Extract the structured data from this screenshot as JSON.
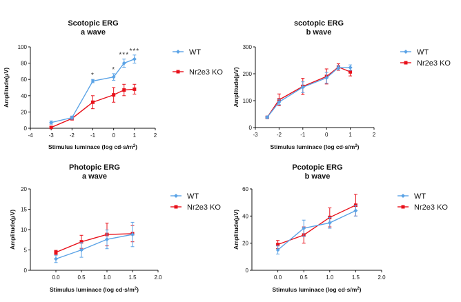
{
  "colors": {
    "wt": "#5ba3e6",
    "ko": "#e8111b",
    "axis": "#111111"
  },
  "chart_data": [
    {
      "type": "line",
      "title": "Scotopic ERG",
      "subtitle": "a wave",
      "xlabel": "Stimulus luminace (log cd·s/m",
      "xlabel_sup": "2",
      "xlabel_close": ")",
      "ylabel": "Amplitude(μV)",
      "xlim": [
        -4,
        2
      ],
      "ylim": [
        0,
        100
      ],
      "xticks": [
        -4,
        -3,
        -2,
        -1,
        0,
        1,
        2
      ],
      "yticks": [
        0,
        20,
        40,
        60,
        80,
        100
      ],
      "legend": "right",
      "series": [
        {
          "name": "WT",
          "x": [
            -3,
            -2,
            -1,
            0,
            0.5,
            1
          ],
          "y": [
            7,
            13,
            58,
            63,
            80,
            85
          ],
          "err": [
            2,
            2,
            2,
            4,
            5,
            5
          ]
        },
        {
          "name": "Nr2e3 KO",
          "x": [
            -3,
            -2,
            -1,
            0,
            0.5,
            1
          ],
          "y": [
            1,
            12,
            32,
            41,
            47,
            48
          ],
          "err": [
            1,
            2,
            8,
            9,
            7,
            6
          ]
        }
      ],
      "annotations": [
        {
          "x": -1,
          "text": "*"
        },
        {
          "x": 0,
          "text": "*"
        },
        {
          "x": 0.5,
          "text": "***"
        },
        {
          "x": 1,
          "text": "***"
        }
      ]
    },
    {
      "type": "line",
      "title": "scotopic ERG",
      "subtitle": "b wave",
      "xlabel": "Stimulus luminace (log cd·s/m",
      "xlabel_sup": "2",
      "xlabel_close": ")",
      "ylabel": "Amplitude(μV)",
      "xlim": [
        -3,
        2
      ],
      "ylim": [
        0,
        300
      ],
      "xticks": [
        -3,
        -2,
        -1,
        0,
        1,
        2
      ],
      "yticks": [
        0,
        100,
        200,
        300
      ],
      "legend": "right",
      "series": [
        {
          "name": "WT",
          "x": [
            -2.5,
            -2,
            -1,
            0,
            0.5,
            1
          ],
          "y": [
            38,
            95,
            150,
            185,
            223,
            223
          ],
          "err": [
            4,
            10,
            20,
            20,
            8,
            10
          ]
        },
        {
          "name": "Nr2e3 KO",
          "x": [
            -2.5,
            -2,
            -1,
            0,
            0.5,
            1
          ],
          "y": [
            38,
            103,
            153,
            190,
            225,
            207
          ],
          "err": [
            4,
            22,
            30,
            28,
            12,
            15
          ]
        }
      ],
      "annotations": []
    },
    {
      "type": "line",
      "title": "Photopic ERG",
      "subtitle": "a wave",
      "xlabel": "Stimulus luminace (log cd·s/m",
      "xlabel_sup": "2",
      "xlabel_close": ")",
      "ylabel": "Amplitude(μV)",
      "xlim": [
        -0.5,
        2
      ],
      "ylim": [
        0,
        20
      ],
      "xticks": [
        0.0,
        0.5,
        1.0,
        1.5,
        2.0
      ],
      "xtick_labels": [
        "0.0",
        "0.5",
        "1.0",
        "1.5",
        "2.0"
      ],
      "yticks": [
        0,
        5,
        10,
        15,
        20
      ],
      "legend": "right",
      "series": [
        {
          "name": "WT",
          "x": [
            0,
            0.5,
            1,
            1.5
          ],
          "y": [
            2.8,
            5.0,
            7.6,
            8.8
          ],
          "err": [
            0.9,
            1.8,
            2.3,
            3.0
          ]
        },
        {
          "name": "Nr2e3 KO",
          "x": [
            0,
            0.5,
            1,
            1.5
          ],
          "y": [
            4.4,
            7.0,
            8.8,
            9.0
          ],
          "err": [
            0.5,
            1.6,
            2.8,
            2.0
          ]
        }
      ],
      "annotations": []
    },
    {
      "type": "line",
      "title": "Pcotopic ERG",
      "subtitle": "b wave",
      "xlabel": "Stimulus luminace (log cd·s/m",
      "xlabel_sup": "2",
      "xlabel_close": ")",
      "ylabel": "Amplitude(μV)",
      "xlim": [
        -0.5,
        2
      ],
      "ylim": [
        0,
        60
      ],
      "xticks": [
        0.0,
        0.5,
        1.0,
        1.5,
        2.0
      ],
      "xtick_labels": [
        "0.0",
        "0.5",
        "1.0",
        "1.5",
        "2.0"
      ],
      "yticks": [
        0,
        20,
        40,
        60
      ],
      "legend": "right",
      "series": [
        {
          "name": "WT",
          "x": [
            0,
            0.5,
            1,
            1.5
          ],
          "y": [
            15,
            31,
            35,
            44
          ],
          "err": [
            3,
            6,
            4,
            4
          ]
        },
        {
          "name": "Nr2e3 KO",
          "x": [
            0,
            0.5,
            1,
            1.5
          ],
          "y": [
            19,
            26,
            39,
            48
          ],
          "err": [
            3,
            6,
            7,
            8
          ]
        }
      ],
      "annotations": []
    }
  ]
}
